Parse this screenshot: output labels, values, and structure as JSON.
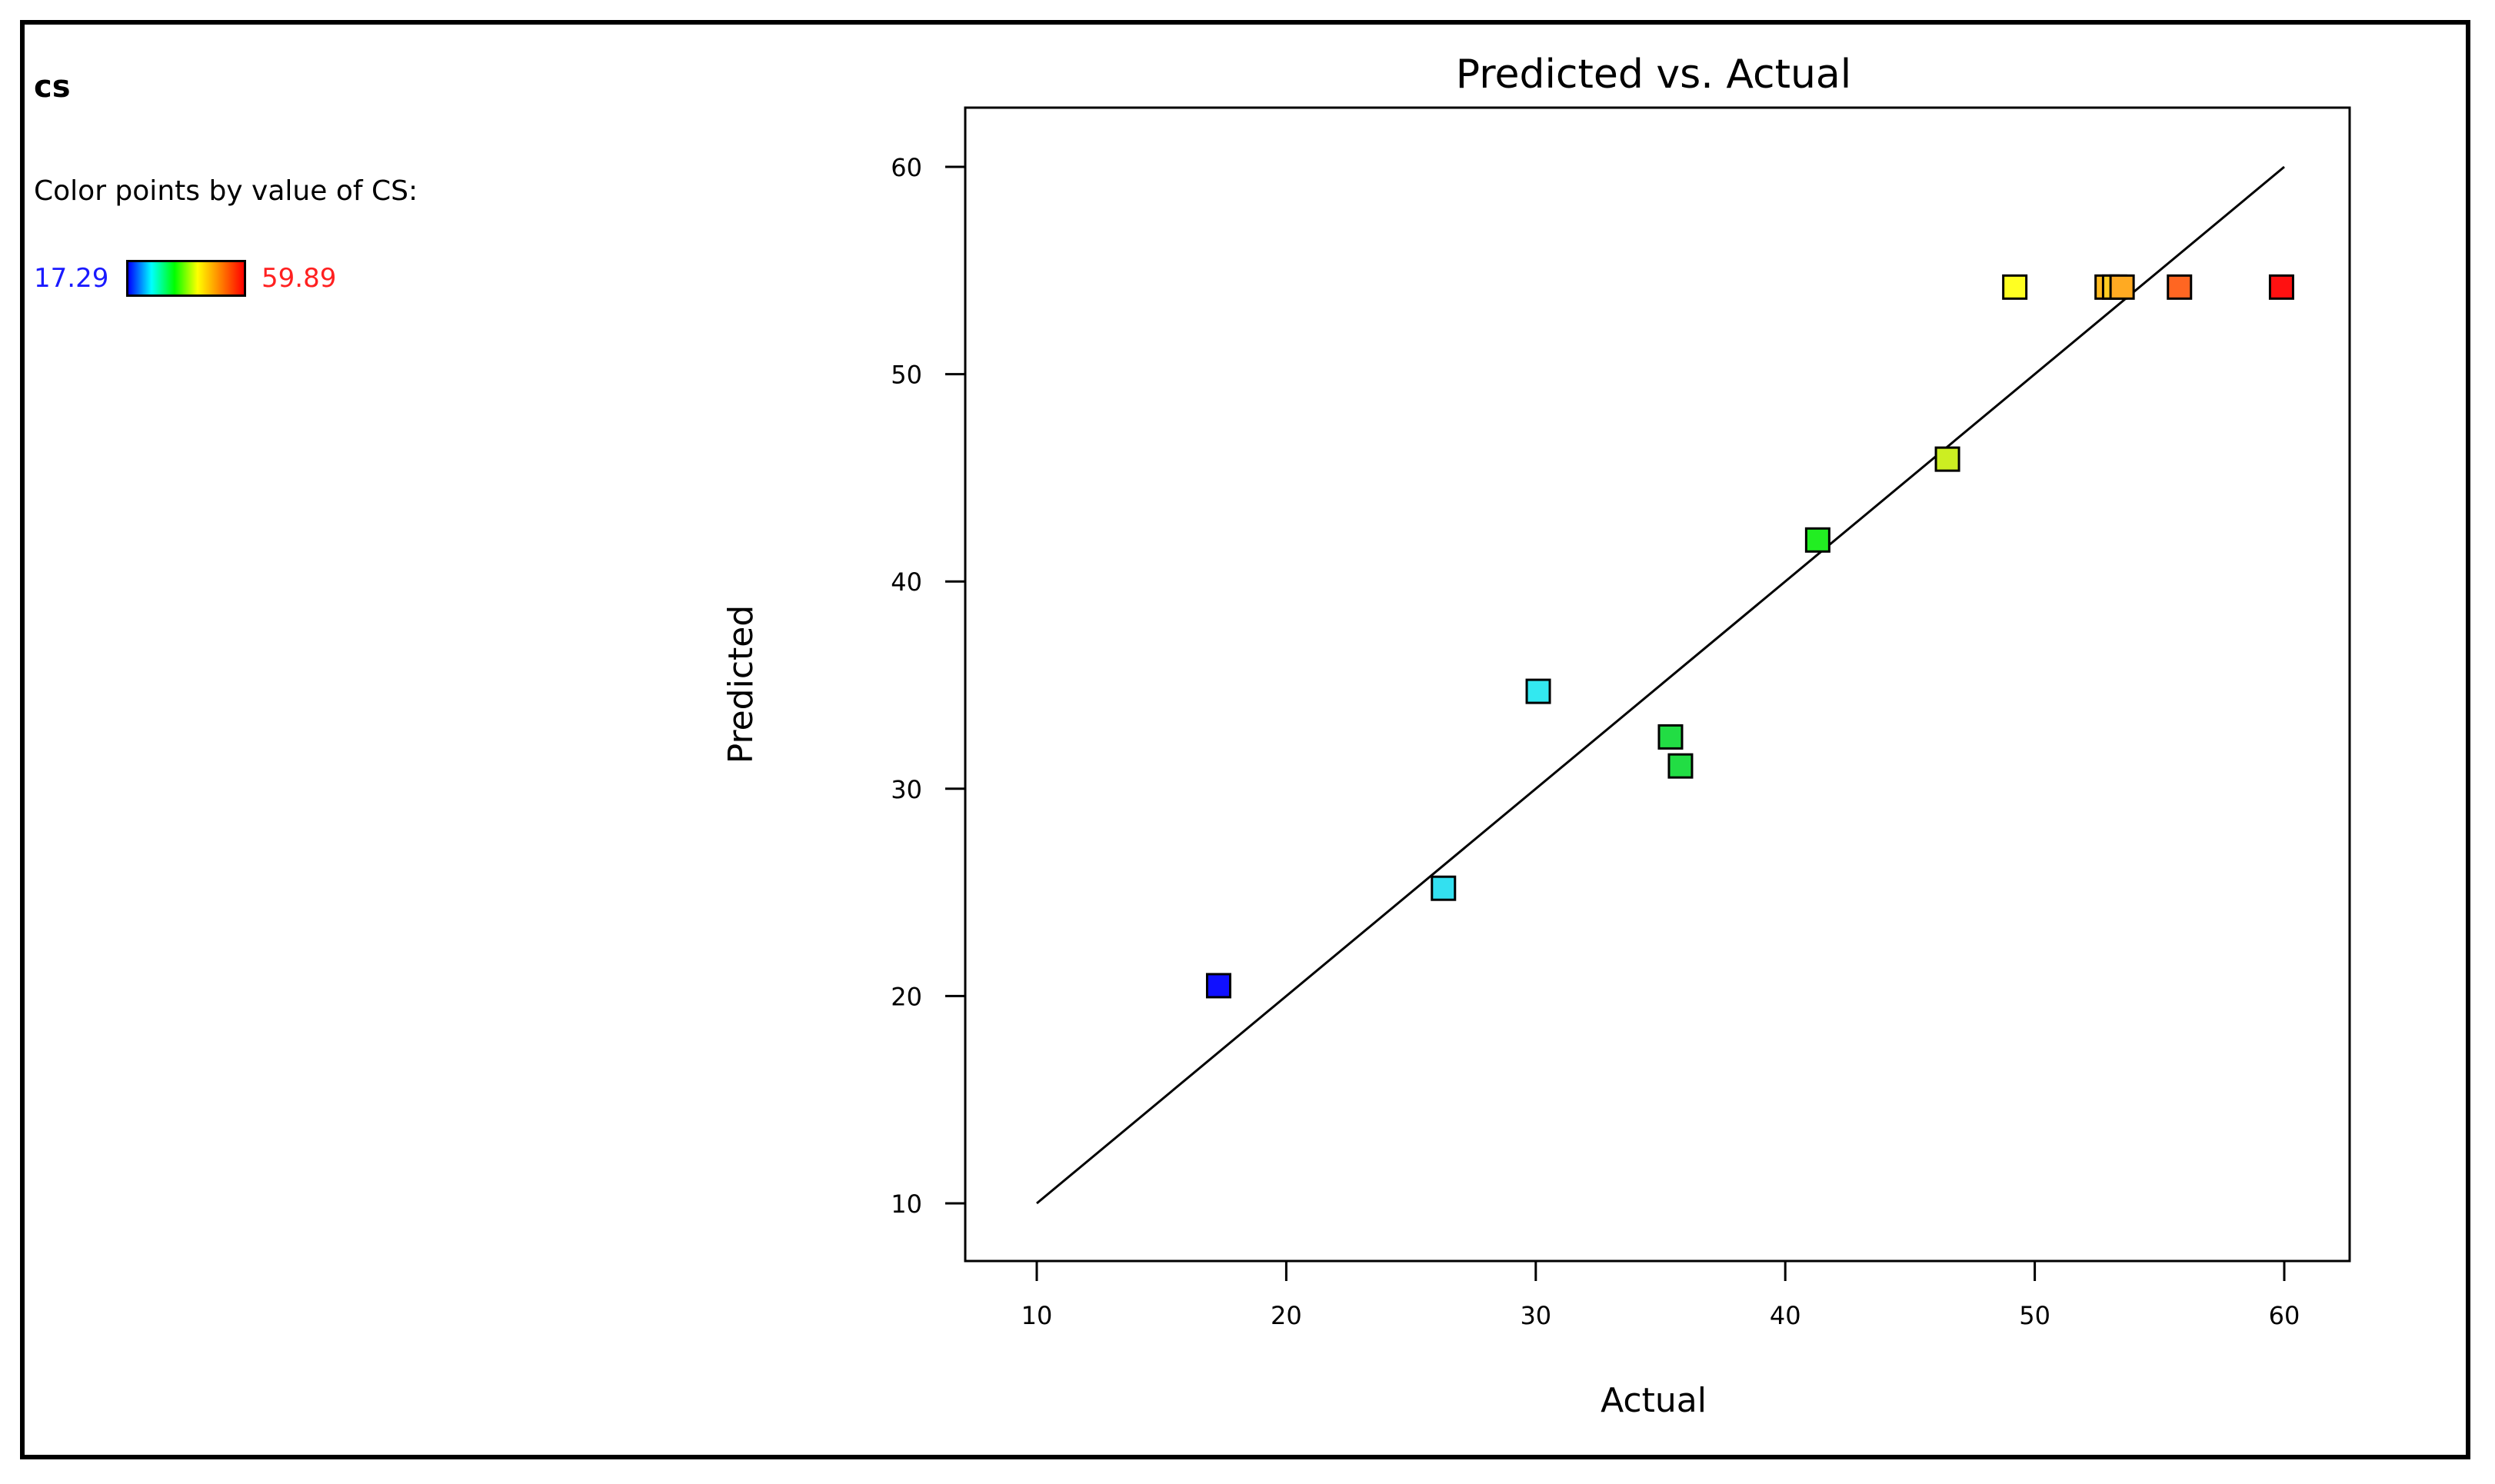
{
  "legend": {
    "heading": "cs",
    "description": "Color points by value of CS:",
    "min_label": "17.29",
    "max_label": "59.89",
    "min_color": "#0000ff",
    "max_color": "#ff0000"
  },
  "chart_data": {
    "type": "scatter",
    "title": "Predicted vs. Actual",
    "xlabel": "Actual",
    "ylabel": "Predicted",
    "xlim": [
      10,
      60
    ],
    "ylim": [
      10,
      60
    ],
    "xticks": [
      "10",
      "20",
      "30",
      "40",
      "50",
      "60"
    ],
    "yticks": [
      "10",
      "20",
      "30",
      "40",
      "50",
      "60"
    ],
    "grid": false,
    "reference_line": {
      "x": [
        10,
        60
      ],
      "y": [
        10,
        60
      ]
    },
    "color_scale": {
      "min": 17.29,
      "max": 59.89,
      "colors": [
        "#0000ff",
        "#00ffff",
        "#00ff00",
        "#ffff00",
        "#ff8000",
        "#ff0000"
      ]
    },
    "points": [
      {
        "x": 17.29,
        "y": 20.5,
        "color": "#1010ff"
      },
      {
        "x": 26.3,
        "y": 25.2,
        "color": "#33e0f0"
      },
      {
        "x": 30.1,
        "y": 34.7,
        "color": "#33e8f0"
      },
      {
        "x": 35.4,
        "y": 32.5,
        "color": "#22dd44"
      },
      {
        "x": 35.8,
        "y": 31.1,
        "color": "#22dd44"
      },
      {
        "x": 41.3,
        "y": 42.0,
        "color": "#22ee22"
      },
      {
        "x": 46.5,
        "y": 45.9,
        "color": "#ccee22"
      },
      {
        "x": 49.2,
        "y": 54.2,
        "color": "#ffff22"
      },
      {
        "x": 52.9,
        "y": 54.2,
        "color": "#ffbb22"
      },
      {
        "x": 53.2,
        "y": 54.2,
        "color": "#ffcc22"
      },
      {
        "x": 53.5,
        "y": 54.2,
        "color": "#ffaa22"
      },
      {
        "x": 55.8,
        "y": 54.2,
        "color": "#ff6622"
      },
      {
        "x": 59.89,
        "y": 54.2,
        "color": "#ff1111"
      }
    ]
  }
}
